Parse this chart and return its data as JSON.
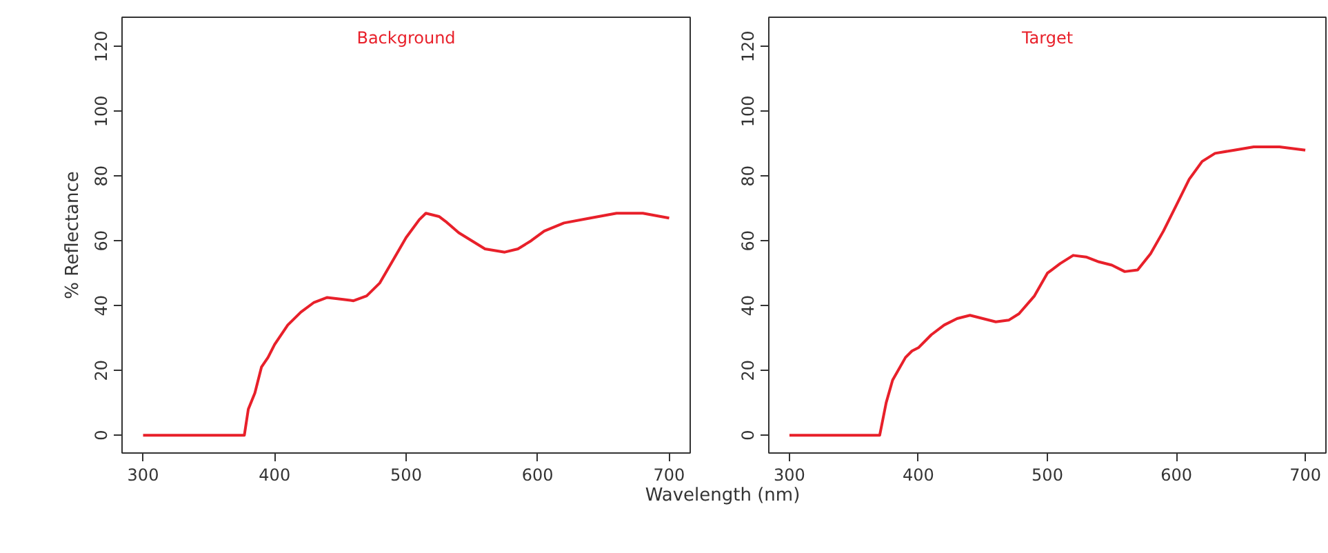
{
  "chart_data": [
    {
      "type": "line",
      "title": "Background",
      "ylabel": "% Reflectance",
      "xlim": [
        284,
        716
      ],
      "ylim": [
        -5.5,
        129
      ],
      "xticks": [
        300,
        400,
        500,
        600,
        700
      ],
      "yticks": [
        0,
        20,
        40,
        60,
        80,
        100,
        120
      ],
      "x": [
        300,
        377,
        380,
        385,
        390,
        395,
        400,
        410,
        420,
        430,
        440,
        450,
        460,
        470,
        480,
        490,
        500,
        510,
        515,
        525,
        530,
        540,
        550,
        560,
        575,
        585,
        595,
        605,
        620,
        640,
        660,
        680,
        700
      ],
      "series": [
        {
          "color": "#e8202a",
          "values": [
            0,
            0,
            8,
            13,
            21,
            24,
            28,
            34,
            38,
            41,
            42.5,
            42,
            41.5,
            43,
            47,
            54,
            61,
            66.5,
            68.5,
            67.5,
            66,
            62.5,
            60,
            57.5,
            56.5,
            57.5,
            60,
            63,
            65.5,
            67,
            68.5,
            68.5,
            67
          ]
        }
      ]
    },
    {
      "type": "line",
      "title": "Target",
      "xlabel": "Wavelength (nm)",
      "xlim": [
        284,
        716
      ],
      "ylim": [
        -5.5,
        129
      ],
      "xticks": [
        300,
        400,
        500,
        600,
        700
      ],
      "yticks": [
        0,
        20,
        40,
        60,
        80,
        100,
        120
      ],
      "x": [
        300,
        370,
        375,
        380,
        390,
        395,
        400,
        410,
        420,
        430,
        440,
        450,
        460,
        470,
        478,
        490,
        500,
        510,
        520,
        530,
        540,
        550,
        560,
        570,
        580,
        590,
        600,
        610,
        620,
        630,
        645,
        660,
        680,
        700
      ],
      "series": [
        {
          "color": "#e8202a",
          "values": [
            0,
            0,
            10,
            17,
            24,
            26,
            27,
            31,
            34,
            36,
            37,
            36,
            35,
            35.5,
            37.5,
            43,
            50,
            53,
            55.5,
            55,
            53.5,
            52.5,
            50.5,
            51,
            56,
            63,
            71,
            79,
            84.5,
            87,
            88,
            89,
            89,
            88
          ]
        }
      ]
    }
  ]
}
